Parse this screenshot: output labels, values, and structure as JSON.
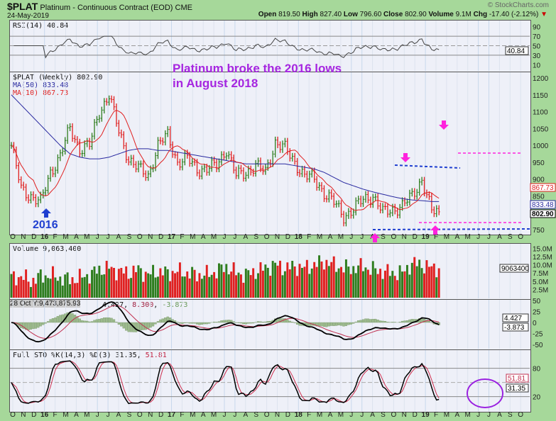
{
  "header": {
    "symbol": "$PLAT",
    "name": "Platinum - Continuous Contract (EOD)",
    "exchange": "CME",
    "date": "24-May-2019",
    "brand": "© StockCharts.com",
    "quote": [
      {
        "k": "Open",
        "v": "819.50"
      },
      {
        "k": "High",
        "v": "827.40"
      },
      {
        "k": "Low",
        "v": "796.60"
      },
      {
        "k": "Close",
        "v": "802.90"
      },
      {
        "k": "Volume",
        "v": "9.1M"
      },
      {
        "k": "Chg",
        "v": "-17.40 (-2.12%)"
      }
    ]
  },
  "panels": {
    "rsi": {
      "label": "RSI(14) 40.84",
      "ticks": [
        "90",
        "70",
        "50",
        "30",
        "10"
      ],
      "tag": "40.84"
    },
    "price": {
      "label": "$PLAT (Weekly) 802.90",
      "ma50": "MA(50) 833.48",
      "ma10": "MA(10) 867.73",
      "ticks": [
        "1200",
        "1150",
        "1100",
        "1050",
        "1000",
        "950",
        "900",
        "850",
        "750"
      ],
      "tags": [
        "867.73",
        "833.48",
        "802.90"
      ]
    },
    "volume": {
      "label": "Volume 9,063,400",
      "ticks": [
        "15.0M",
        "12.5M",
        "10.0M",
        "7.5M",
        "5.0M",
        "2.5M"
      ],
      "tag": "9063400"
    },
    "macd": {
      "label_prefix": "28 Oct Y:9,473,875.93",
      "v1": "4.427",
      "v2": "8.300",
      "v3": "-3.873",
      "ticks": [
        "50",
        "25",
        "0",
        "-25",
        "-50"
      ],
      "tags": [
        "4.427",
        "-3.873"
      ]
    },
    "sto": {
      "label": "Full STO %K(14,3) %D(3) 31.35,",
      "d": "51.81",
      "ticks": [
        "80",
        "20"
      ],
      "tags": [
        "51.81",
        "31.35"
      ]
    }
  },
  "months": [
    "O",
    "N",
    "D",
    "16",
    "F",
    "M",
    "A",
    "M",
    "J",
    "J",
    "A",
    "S",
    "O",
    "N",
    "D",
    "17",
    "F",
    "M",
    "A",
    "M",
    "J",
    "J",
    "A",
    "S",
    "O",
    "N",
    "D",
    "18",
    "F",
    "M",
    "A",
    "M",
    "J",
    "J",
    "A",
    "S",
    "O",
    "N",
    "D",
    "19",
    "F",
    "M",
    "A",
    "M",
    "J",
    "J",
    "A",
    "S",
    "O"
  ],
  "annotations": {
    "text1": "Platinum broke the 2016 lows",
    "text2": "in August 2018",
    "year": "2016"
  },
  "colors": {
    "up": "#2e7d1e",
    "down": "#e02020",
    "ma50": "#2a2aa0",
    "ma10": "#e02020",
    "annotation": "#a626e0",
    "magenta": "#ff22dd",
    "blue": "#1f3fd0"
  },
  "chart_data": {
    "type": "bar",
    "interval": "weekly",
    "start": "Oct 2015",
    "ylim": [
      740,
      1210
    ],
    "monthly_close": [
      1000,
      870,
      850,
      830,
      920,
      970,
      1050,
      990,
      1000,
      1100,
      1150,
      1040,
      960,
      930,
      910,
      1000,
      1030,
      950,
      960,
      930,
      930,
      940,
      990,
      910,
      920,
      940,
      920,
      1010,
      990,
      950,
      910,
      900,
      860,
      830,
      790,
      810,
      840,
      850,
      800,
      810,
      820,
      850,
      900,
      803
    ],
    "ma50_monthly": [
      1150,
      1120,
      1090,
      1060,
      1030,
      1000,
      975,
      965,
      960,
      960,
      965,
      975,
      985,
      990,
      990,
      985,
      985,
      980,
      975,
      970,
      965,
      960,
      955,
      950,
      945,
      945,
      945,
      945,
      945,
      940,
      935,
      930,
      920,
      905,
      890,
      880,
      870,
      862,
      855,
      848,
      842,
      838,
      836,
      833.48
    ],
    "monthly_volume_m": [
      6,
      6.5,
      5,
      6.5,
      6.8,
      6,
      5.5,
      6,
      7,
      8.5,
      9,
      8,
      7.5,
      8.5,
      7,
      8,
      7.5,
      8,
      7.5,
      7,
      7,
      8,
      9.5,
      7.5,
      7,
      8,
      9,
      10,
      9,
      9.5,
      9,
      10,
      11,
      10,
      9,
      9,
      9.5,
      8.5,
      8,
      7.5,
      7.5,
      10.5,
      10,
      9.06
    ]
  }
}
